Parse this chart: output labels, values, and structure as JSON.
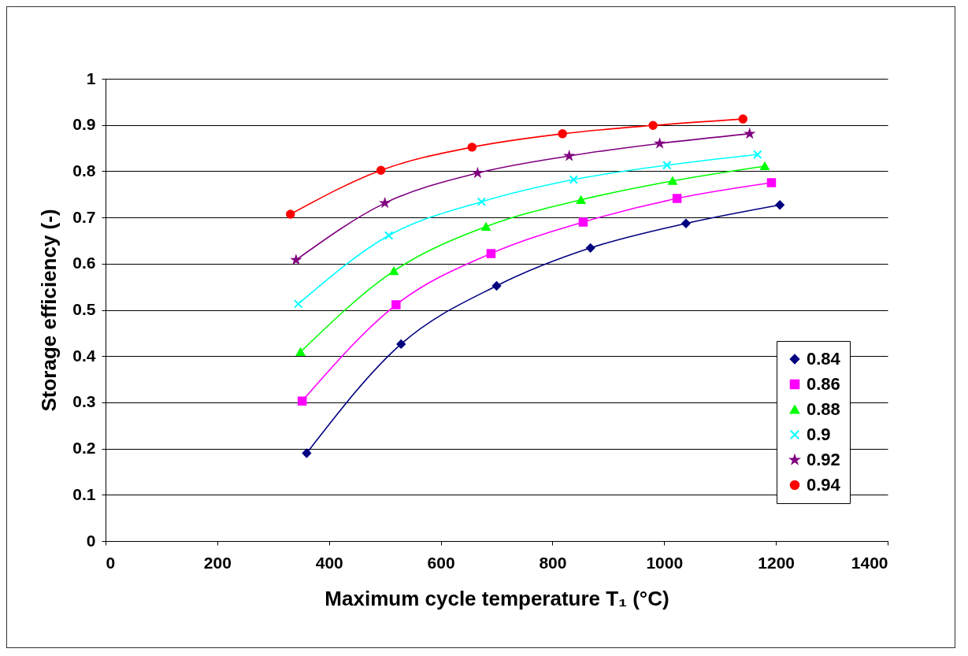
{
  "chart_data": {
    "type": "line",
    "xlabel": "Maximum cycle temperature T₁ (°C)",
    "ylabel": "Storage efficiency (-)",
    "xlim": [
      0,
      1400
    ],
    "xticks": [
      0,
      200,
      400,
      600,
      800,
      1000,
      1200,
      1400
    ],
    "ylim": [
      0,
      1
    ],
    "yticks": [
      0,
      0.1,
      0.2,
      0.3,
      0.4,
      0.5,
      0.6,
      0.7,
      0.8,
      0.9,
      1
    ],
    "grid": "y",
    "legend": "right",
    "line_style": "solid",
    "series": [
      {
        "name": "0.84",
        "color": "#000080",
        "marker": "diamond",
        "x": [
          360,
          529,
          700,
          868,
          1039,
          1207
        ],
        "values": [
          0.19,
          0.426,
          0.552,
          0.634,
          0.687,
          0.727
        ]
      },
      {
        "name": "0.86",
        "color": "#ff00ff",
        "marker": "square",
        "x": [
          352,
          520,
          690,
          855,
          1023,
          1192
        ],
        "values": [
          0.303,
          0.511,
          0.622,
          0.69,
          0.741,
          0.775
        ]
      },
      {
        "name": "0.88",
        "color": "#00ff00",
        "marker": "triangle",
        "x": [
          349,
          516,
          681,
          851,
          1015,
          1180
        ],
        "values": [
          0.409,
          0.584,
          0.68,
          0.738,
          0.779,
          0.811
        ]
      },
      {
        "name": "0.9",
        "color": "#00ffff",
        "marker": "cross",
        "x": [
          345,
          507,
          673,
          838,
          1005,
          1167
        ],
        "values": [
          0.513,
          0.661,
          0.734,
          0.782,
          0.813,
          0.836
        ]
      },
      {
        "name": "0.92",
        "color": "#800080",
        "marker": "star",
        "x": [
          341,
          500,
          666,
          830,
          992,
          1153
        ],
        "values": [
          0.608,
          0.731,
          0.796,
          0.833,
          0.86,
          0.881
        ]
      },
      {
        "name": "0.94",
        "color": "#ff0000",
        "marker": "circle",
        "x": [
          331,
          493,
          656,
          818,
          980,
          1141
        ],
        "values": [
          0.707,
          0.802,
          0.852,
          0.881,
          0.899,
          0.913
        ]
      }
    ]
  }
}
